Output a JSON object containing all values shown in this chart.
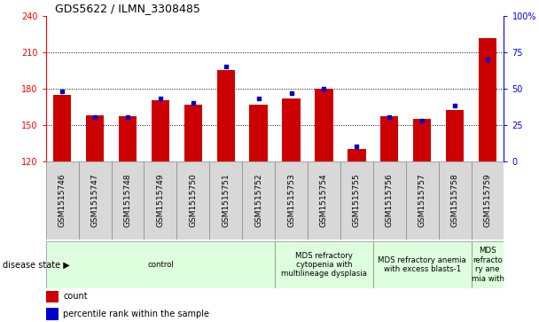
{
  "title": "GDS5622 / ILMN_3308485",
  "samples": [
    "GSM1515746",
    "GSM1515747",
    "GSM1515748",
    "GSM1515749",
    "GSM1515750",
    "GSM1515751",
    "GSM1515752",
    "GSM1515753",
    "GSM1515754",
    "GSM1515755",
    "GSM1515756",
    "GSM1515757",
    "GSM1515758",
    "GSM1515759"
  ],
  "counts": [
    175,
    158,
    157,
    170,
    167,
    195,
    167,
    172,
    180,
    130,
    157,
    155,
    162,
    222
  ],
  "percentile_ranks": [
    48,
    30,
    30,
    43,
    40,
    65,
    43,
    47,
    50,
    10,
    30,
    28,
    38,
    70
  ],
  "ylim_left": [
    120,
    240
  ],
  "ylim_right": [
    0,
    100
  ],
  "yticks_left": [
    120,
    150,
    180,
    210,
    240
  ],
  "yticks_right": [
    0,
    25,
    50,
    75,
    100
  ],
  "bar_color": "#cc0000",
  "marker_color": "#0000cc",
  "bar_bottom": 120,
  "disease_groups": [
    {
      "label": "control",
      "start": 0,
      "end": 7,
      "color": "#ddffdd"
    },
    {
      "label": "MDS refractory\ncytopenia with\nmultilineage dysplasia",
      "start": 7,
      "end": 10,
      "color": "#ddffdd"
    },
    {
      "label": "MDS refractory anemia\nwith excess blasts-1",
      "start": 10,
      "end": 13,
      "color": "#ddffdd"
    },
    {
      "label": "MDS\nrefracto\nry ane\nmia with",
      "start": 13,
      "end": 14,
      "color": "#ddffdd"
    }
  ],
  "legend_count_label": "count",
  "legend_pct_label": "percentile rank within the sample",
  "disease_state_label": "disease state",
  "grid_color": "#000000",
  "tick_label_bg": "#d8d8d8",
  "tick_label_edge": "#888888"
}
